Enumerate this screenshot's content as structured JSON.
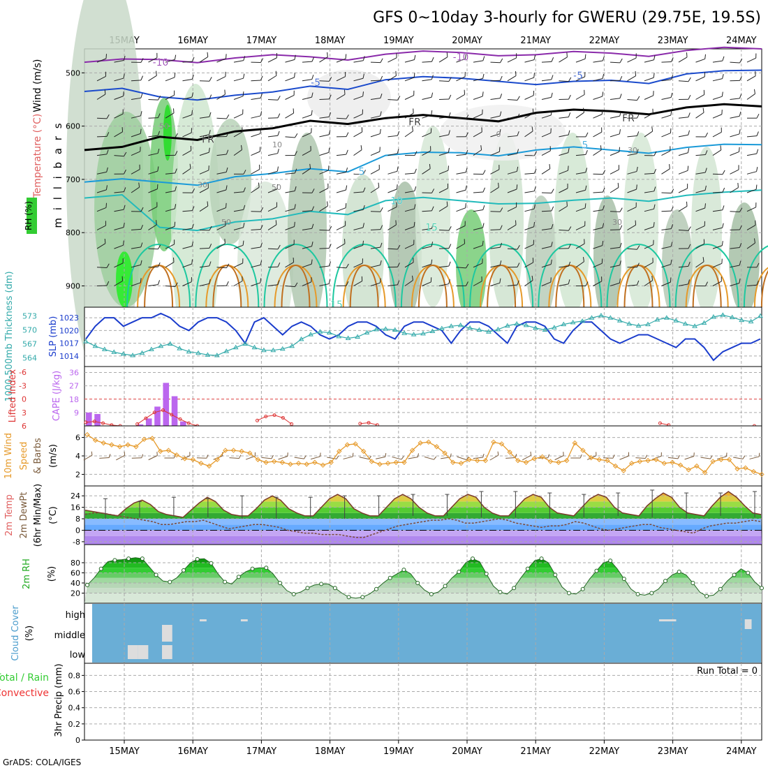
{
  "title": "GFS 0~10day 3-hourly for GWERU (29.75E, 19.5S)",
  "footer": "GrADS: COLA/IGES",
  "dates": [
    "15MAY",
    "16MAY",
    "17MAY",
    "18MAY",
    "19MAY",
    "20MAY",
    "21MAY",
    "22MAY",
    "23MAY",
    "24MAY"
  ],
  "colors": {
    "grid": "#aaaaaa",
    "temp_label": "#e06060",
    "wind_label": "#000000",
    "rh_green": "#33cc33",
    "slp_blue": "#1a3ccc",
    "thick_teal": "#33aaaa",
    "cape_purple": "#bb66ee",
    "li_red": "#dd3333",
    "speed_orange": "#e69a2a",
    "barb_brown": "#7a5a3a",
    "cloud_blue": "#6aaed6",
    "precip_green": "#33cc33",
    "precip_red": "#ee3333"
  },
  "chart_data": [
    {
      "type": "contour",
      "panel": "upper-air",
      "ylabel": "m i l l i b a r s",
      "side_labels": {
        "rh": "RH (%)",
        "temperature": "Temperature (°C)",
        "wind": "Wind (m/s)"
      },
      "yticks": [
        500,
        600,
        700,
        800,
        900
      ],
      "ylim": [
        940,
        455
      ],
      "isotherm_labels": [
        "-10",
        "-10",
        "-5",
        "-5",
        "FR",
        "FR",
        "FR",
        "5",
        "5",
        "10",
        "15",
        "15"
      ],
      "rh_labels": [
        "50",
        "10",
        "30",
        "50",
        "50",
        "30",
        "0",
        "30"
      ],
      "isotherms": [
        {
          "label": "-10",
          "p": [
            480,
            475,
            472,
            470,
            465,
            462,
            466,
            463,
            458,
            455
          ]
        },
        {
          "label": "-5",
          "p": [
            535,
            545,
            542,
            525,
            513,
            510,
            522,
            514,
            502,
            495
          ]
        },
        {
          "label": "FR",
          "p": [
            645,
            620,
            610,
            590,
            585,
            585,
            575,
            572,
            565,
            563
          ]
        },
        {
          "label": "5",
          "p": [
            705,
            705,
            695,
            680,
            655,
            650,
            645,
            645,
            640,
            635
          ]
        },
        {
          "label": "10",
          "p": [
            735,
            790,
            780,
            760,
            740,
            740,
            745,
            735,
            730,
            720
          ]
        }
      ]
    },
    {
      "type": "line",
      "panel": "slp-thickness",
      "ylabel_left": "1000-500mb Thickness (dm)",
      "ylabel_right": "SLP (mb)",
      "yticks_left": [
        564,
        567,
        570,
        573
      ],
      "yticks_right": [
        1014,
        1017,
        1020,
        1023
      ],
      "series": [
        {
          "name": "SLP",
          "values": [
            1018,
            1021,
            1023,
            1023,
            1021,
            1022,
            1023,
            1023,
            1024,
            1023,
            1021,
            1020,
            1022,
            1023,
            1023,
            1022,
            1020,
            1017,
            1022,
            1023,
            1021,
            1019,
            1021,
            1022,
            1021,
            1019,
            1018,
            1019,
            1021,
            1022,
            1022,
            1021,
            1019,
            1018,
            1021,
            1022,
            1022,
            1021,
            1020,
            1017,
            1020,
            1022,
            1022,
            1021,
            1019,
            1017,
            1021,
            1022,
            1022,
            1021,
            1018,
            1017,
            1020,
            1022,
            1022,
            1020,
            1018,
            1017,
            1018,
            1019,
            1019,
            1018,
            1017,
            1016,
            1018,
            1018,
            1016,
            1013,
            1015,
            1016,
            1017,
            1017,
            1018
          ]
        },
        {
          "name": "Thickness",
          "values": [
            567.5,
            566.5,
            565.8,
            565.2,
            564.8,
            564.5,
            565.0,
            565.8,
            566.5,
            567.0,
            566.0,
            565.3,
            565.0,
            564.6,
            564.5,
            565.4,
            566.2,
            567.0,
            566.2,
            565.6,
            565.6,
            565.9,
            566.5,
            568.0,
            569.0,
            569.6,
            569.4,
            568.6,
            568.2,
            568.5,
            569.4,
            570.1,
            570.2,
            570.0,
            569.3,
            569.0,
            569.2,
            569.7,
            570.3,
            570.8,
            571.0,
            570.4,
            570.0,
            569.6,
            570.1,
            570.9,
            571.3,
            571.0,
            570.4,
            570.0,
            570.5,
            571.2,
            571.6,
            571.9,
            572.6,
            573.1,
            572.6,
            572.0,
            571.3,
            570.9,
            571.2,
            572.2,
            572.6,
            572.0,
            571.3,
            570.8,
            571.5,
            572.8,
            573.2,
            572.7,
            572.1,
            571.8,
            573.0
          ]
        }
      ]
    },
    {
      "type": "bar",
      "panel": "cape-lifted-index",
      "ylabel_left": "Lifted Index",
      "ylabel_right": "CAPE (J/kg)",
      "yticks_cape": [
        9,
        18,
        27,
        36
      ],
      "yticks_li": [
        "-6",
        "-3",
        "0",
        "3",
        "6"
      ],
      "series": [
        {
          "name": "CAPE",
          "points": [
            [
              0,
              9
            ],
            [
              1,
              8
            ],
            [
              6,
              1
            ],
            [
              7,
              5
            ],
            [
              8,
              13
            ],
            [
              9,
              29
            ],
            [
              10,
              20
            ],
            [
              11,
              3
            ]
          ]
        },
        {
          "name": "Lifted Index",
          "points": [
            [
              0,
              5.2
            ],
            [
              1,
              5.0
            ],
            [
              2,
              5.4
            ],
            [
              3,
              5.8
            ],
            [
              4,
              6.0
            ],
            [
              6,
              5.6
            ],
            [
              7,
              4.3
            ],
            [
              8,
              3.0
            ],
            [
              9,
              2.5
            ],
            [
              10,
              3.5
            ],
            [
              11,
              4.5
            ],
            [
              12,
              5.4
            ],
            [
              13,
              6.0
            ],
            [
              20,
              4.8
            ],
            [
              21,
              3.9
            ],
            [
              22,
              3.6
            ],
            [
              23,
              4.2
            ],
            [
              24,
              5.6
            ],
            [
              32,
              5.5
            ],
            [
              33,
              5.3
            ],
            [
              34,
              5.8
            ],
            [
              67,
              5.4
            ],
            [
              68,
              5.8
            ],
            [
              78,
              6.0
            ]
          ]
        }
      ]
    },
    {
      "type": "line",
      "panel": "10m-wind",
      "ylabel": "10m Wind Speed & Barbs (m/s)",
      "yticks": [
        2,
        4,
        6
      ],
      "series": [
        {
          "name": "Speed",
          "values": [
            6.3,
            5.7,
            5.4,
            5.2,
            5.0,
            5.2,
            5.0,
            5.8,
            5.9,
            4.5,
            4.6,
            4.1,
            3.7,
            3.6,
            3.2,
            2.9,
            3.6,
            4.6,
            4.6,
            4.5,
            4.3,
            3.6,
            3.3,
            3.4,
            3.3,
            3.1,
            3.2,
            3.1,
            3.3,
            3.0,
            3.3,
            4.5,
            5.2,
            5.3,
            4.5,
            3.4,
            3.1,
            3.2,
            3.3,
            3.3,
            4.6,
            5.4,
            5.5,
            5.0,
            4.3,
            3.3,
            3.2,
            3.6,
            3.5,
            3.5,
            5.5,
            5.3,
            4.4,
            3.5,
            3.3,
            3.7,
            3.9,
            3.4,
            3.3,
            3.5,
            5.4,
            4.6,
            3.8,
            3.6,
            3.5,
            2.9,
            2.4,
            3.2,
            3.4,
            3.5,
            3.6,
            3.2,
            3.3,
            3.0,
            2.5,
            2.9,
            2.2,
            3.4,
            3.6,
            3.6,
            2.6,
            2.7,
            2.3,
            2.0
          ]
        }
      ]
    },
    {
      "type": "area",
      "panel": "2m-temp",
      "ylabel": "2m Temp 2m DewPt (6hr Min/Max) (°C)",
      "yticks": [
        -8,
        0,
        8,
        16,
        24
      ],
      "series": [
        {
          "name": "Temperature",
          "values": [
            14,
            13,
            12,
            11,
            10,
            15,
            19,
            21,
            18,
            13,
            11,
            10,
            9,
            14,
            19,
            23,
            20,
            14,
            11,
            10,
            10,
            15,
            21,
            24,
            21,
            15,
            12,
            10,
            10,
            16,
            22,
            25,
            22,
            15,
            12,
            10,
            10,
            16,
            22,
            25,
            22,
            16,
            12,
            10,
            10,
            16,
            22,
            25,
            23,
            16,
            12,
            10,
            10,
            16,
            22,
            25,
            23,
            16,
            12,
            11,
            10,
            16,
            22,
            25,
            23,
            16,
            12,
            11,
            10,
            17,
            22,
            26,
            23,
            16,
            12,
            11,
            10,
            17,
            23,
            27,
            23,
            17,
            12,
            11
          ]
        },
        {
          "name": "Dew Point",
          "values": [
            11,
            12,
            12,
            11,
            10,
            9,
            8,
            7,
            6,
            4,
            4,
            5,
            6,
            6,
            7,
            5,
            3,
            1,
            2,
            3,
            4,
            4,
            3,
            2,
            0,
            -1,
            -2,
            -2,
            -3,
            -3,
            -3,
            -4,
            -5,
            -5,
            -3,
            -1,
            1,
            3,
            4,
            5,
            6,
            7,
            7,
            8,
            7,
            5,
            5,
            6,
            7,
            8,
            7,
            5,
            4,
            3,
            2,
            3,
            3,
            4,
            6,
            5,
            3,
            1,
            0,
            1,
            2,
            3,
            4,
            4,
            2,
            1,
            0,
            -1,
            -2,
            1,
            3,
            4,
            5,
            5,
            6,
            7,
            6
          ]
        },
        {
          "name": "Max",
          "values": [
            22,
            20,
            23,
            22,
            24,
            23,
            23,
            24,
            24,
            25,
            25,
            27,
            27,
            26,
            25,
            26,
            28,
            26,
            26,
            27
          ]
        },
        {
          "name": "Min",
          "values": [
            8,
            9,
            10,
            9,
            8,
            8,
            9,
            8,
            10,
            10,
            10,
            9,
            9,
            8,
            9,
            10,
            9,
            8,
            10,
            9
          ]
        }
      ]
    },
    {
      "type": "area",
      "panel": "2m-rh",
      "ylabel": "2m RH (%)",
      "yticks": [
        20,
        40,
        60,
        80
      ],
      "series": [
        {
          "name": "RH",
          "values": [
            36,
            50,
            68,
            82,
            85,
            86,
            88,
            90,
            88,
            72,
            56,
            44,
            42,
            50,
            65,
            80,
            87,
            88,
            79,
            58,
            42,
            38,
            52,
            62,
            68,
            70,
            70,
            58,
            40,
            25,
            18,
            22,
            30,
            36,
            38,
            38,
            30,
            20,
            12,
            10,
            12,
            18,
            28,
            40,
            50,
            58,
            66,
            58,
            40,
            26,
            18,
            22,
            34,
            50,
            62,
            80,
            88,
            82,
            58,
            34,
            22,
            18,
            30,
            50,
            68,
            84,
            88,
            80,
            56,
            32,
            20,
            18,
            28,
            48,
            64,
            80,
            84,
            68,
            48,
            28,
            18,
            16,
            20,
            28,
            44,
            56,
            62,
            56,
            40,
            22,
            14,
            16,
            28,
            44,
            56,
            68,
            60,
            42,
            30
          ]
        }
      ]
    },
    {
      "type": "heatmap",
      "panel": "cloud-cover",
      "ylabel": "Cloud Cover (%)",
      "levels": [
        "high",
        "middle",
        "low"
      ],
      "clear_patches": [
        {
          "level": "low",
          "x_start": 15.05,
          "x_end": 15.2
        },
        {
          "level": "low",
          "x_start": 15.2,
          "x_end": 15.35
        },
        {
          "level": "low",
          "x_start": 15.55,
          "x_end": 15.7
        },
        {
          "level": "middle",
          "x_start": 15.55,
          "x_end": 15.7
        },
        {
          "level": "high",
          "x_start": 16.1,
          "x_end": 16.2
        },
        {
          "level": "high",
          "x_start": 16.7,
          "x_end": 16.8
        },
        {
          "level": "high",
          "x_start": 22.8,
          "x_end": 23.05
        },
        {
          "level": "high",
          "x_start": 24.05,
          "x_end": 24.15
        }
      ]
    },
    {
      "type": "bar",
      "panel": "precip",
      "ylabel": "3hr Precip (mm)",
      "legend": [
        "Total / Rain",
        "Convective"
      ],
      "run_total": "Run Total = 0",
      "yticks": [
        "0",
        "0.2",
        "0.4",
        "0.6",
        "0.8"
      ],
      "ylim": [
        0,
        0.95
      ],
      "values": []
    }
  ]
}
